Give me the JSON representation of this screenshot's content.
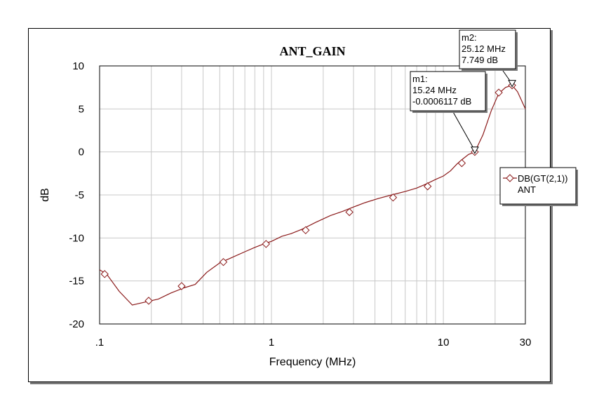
{
  "chart_data": {
    "type": "line",
    "title": "ANT_GAIN",
    "xlabel": "Frequency (MHz)",
    "ylabel": "dB",
    "xscale": "log",
    "xlim": [
      0.1,
      30
    ],
    "ylim": [
      -20,
      10
    ],
    "x_ticks": [
      ".1",
      "1",
      "10",
      "30"
    ],
    "y_ticks": [
      "10",
      "5",
      "0",
      "-5",
      "-10",
      "-15",
      "-20"
    ],
    "grid": true,
    "legend_position": "right",
    "series": [
      {
        "name": "DB(GT(2,1))",
        "subname": "ANT",
        "color": "#8b1a1a",
        "x": [
          0.1,
          0.11,
          0.13,
          0.155,
          0.18,
          0.22,
          0.26,
          0.31,
          0.36,
          0.42,
          0.5,
          0.6,
          0.7,
          0.8,
          0.9,
          1.0,
          1.15,
          1.3,
          1.5,
          1.8,
          2.2,
          2.6,
          3.0,
          3.5,
          4.2,
          5.0,
          6.0,
          7.0,
          8.0,
          9.0,
          10.0,
          11.0,
          12.0,
          13.0,
          14.0,
          15.24,
          17.0,
          19.0,
          21.0,
          23.0,
          25.12,
          27.0,
          30.0
        ],
        "y": [
          -13.7,
          -14.2,
          -16.2,
          -17.8,
          -17.5,
          -17.1,
          -16.4,
          -15.8,
          -15.4,
          -14.0,
          -12.9,
          -12.2,
          -11.6,
          -11.1,
          -10.7,
          -10.4,
          -9.8,
          -9.5,
          -9.0,
          -8.2,
          -7.4,
          -6.9,
          -6.4,
          -5.9,
          -5.4,
          -5.0,
          -4.6,
          -4.2,
          -3.7,
          -3.2,
          -2.8,
          -2.2,
          -1.4,
          -0.8,
          -0.3,
          0.0,
          2.0,
          4.8,
          6.8,
          7.5,
          7.749,
          7.0,
          5.0
        ]
      }
    ],
    "marker_points": {
      "x": [
        0.107,
        0.193,
        0.3,
        0.525,
        0.93,
        1.58,
        2.84,
        5.1,
        8.1,
        12.8,
        15.24,
        21.0,
        25.12
      ],
      "y": [
        -14.2,
        -17.3,
        -15.6,
        -12.8,
        -10.7,
        -9.1,
        -7.0,
        -5.3,
        -4.0,
        -1.3,
        0.0,
        6.9,
        7.749
      ]
    },
    "annotations": [
      {
        "name": "m1",
        "x": 15.24,
        "y": -0.0006117,
        "line1": "15.24 MHz",
        "line2": "-0.0006117 dB"
      },
      {
        "name": "m2",
        "x": 25.12,
        "y": 7.749,
        "line1": "25.12 MHz",
        "line2": "7.749 dB"
      }
    ]
  }
}
